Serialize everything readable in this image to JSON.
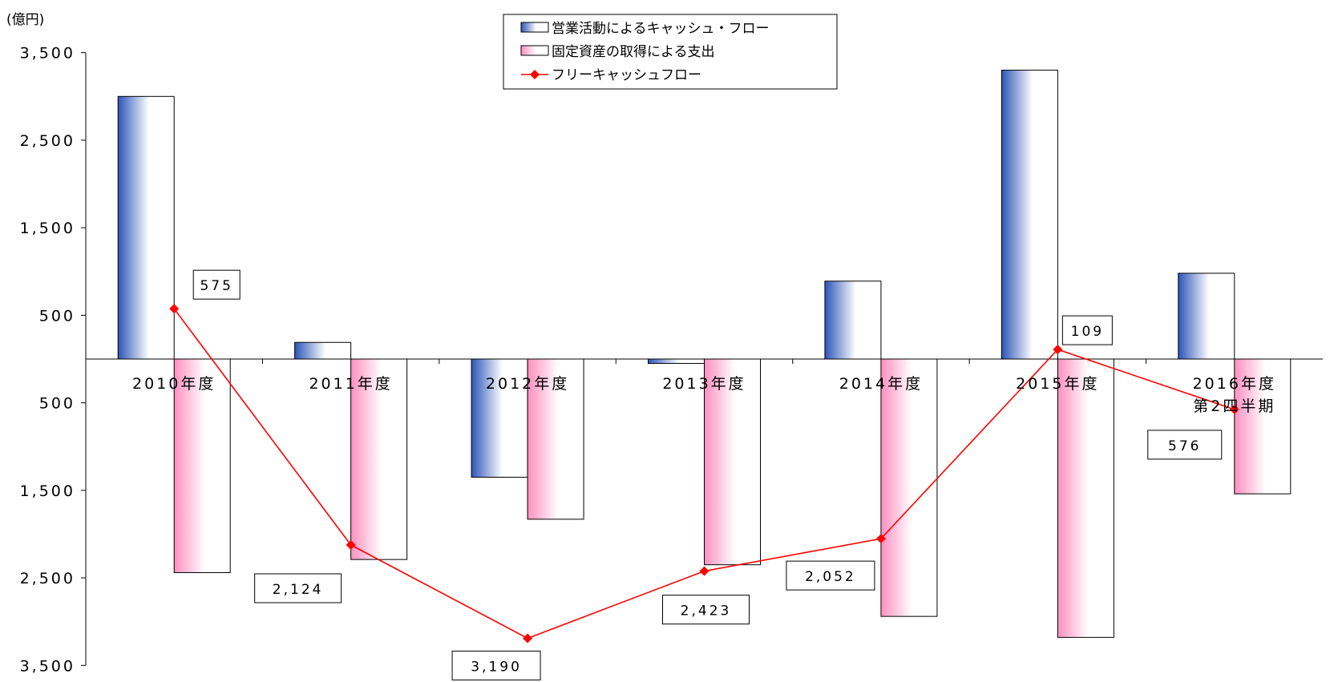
{
  "chart_data": {
    "type": "bar",
    "unit_label": "(億円)",
    "categories": [
      "2010年度",
      "2011年度",
      "2012年度",
      "2013年度",
      "2014年度",
      "2015年度",
      "2016年度\n第2四半期"
    ],
    "series": [
      {
        "name": "営業活動によるキャッシュ・フロー",
        "type": "bar",
        "color": "#2d55b8",
        "values": [
          3000,
          190,
          -1350,
          -50,
          890,
          3300,
          980
        ]
      },
      {
        "name": "固定資産の取得による支出",
        "type": "bar",
        "color": "#ff8fc0",
        "values": [
          -2440,
          -2290,
          -1830,
          -2350,
          -2940,
          -3180,
          -1540
        ]
      },
      {
        "name": "フリーキャッシュフロー",
        "type": "line",
        "color": "#ff0000",
        "marker": "diamond",
        "values": [
          575,
          -2124,
          -3190,
          -2423,
          -2052,
          109,
          -576
        ]
      }
    ],
    "data_labels": [
      "575",
      "2,124",
      "3,190",
      "2,423",
      "2,052",
      "109",
      "576"
    ],
    "yticks": [
      3500,
      2500,
      1500,
      500,
      -500,
      -1500,
      -2500,
      -3500
    ],
    "ytick_labels": [
      "3,500",
      "2,500",
      "1,500",
      "500",
      "500",
      "1,500",
      "2,500",
      "3,500"
    ],
    "ylim": [
      -3500,
      3500
    ],
    "grid": false,
    "legend_position": "top-center"
  }
}
